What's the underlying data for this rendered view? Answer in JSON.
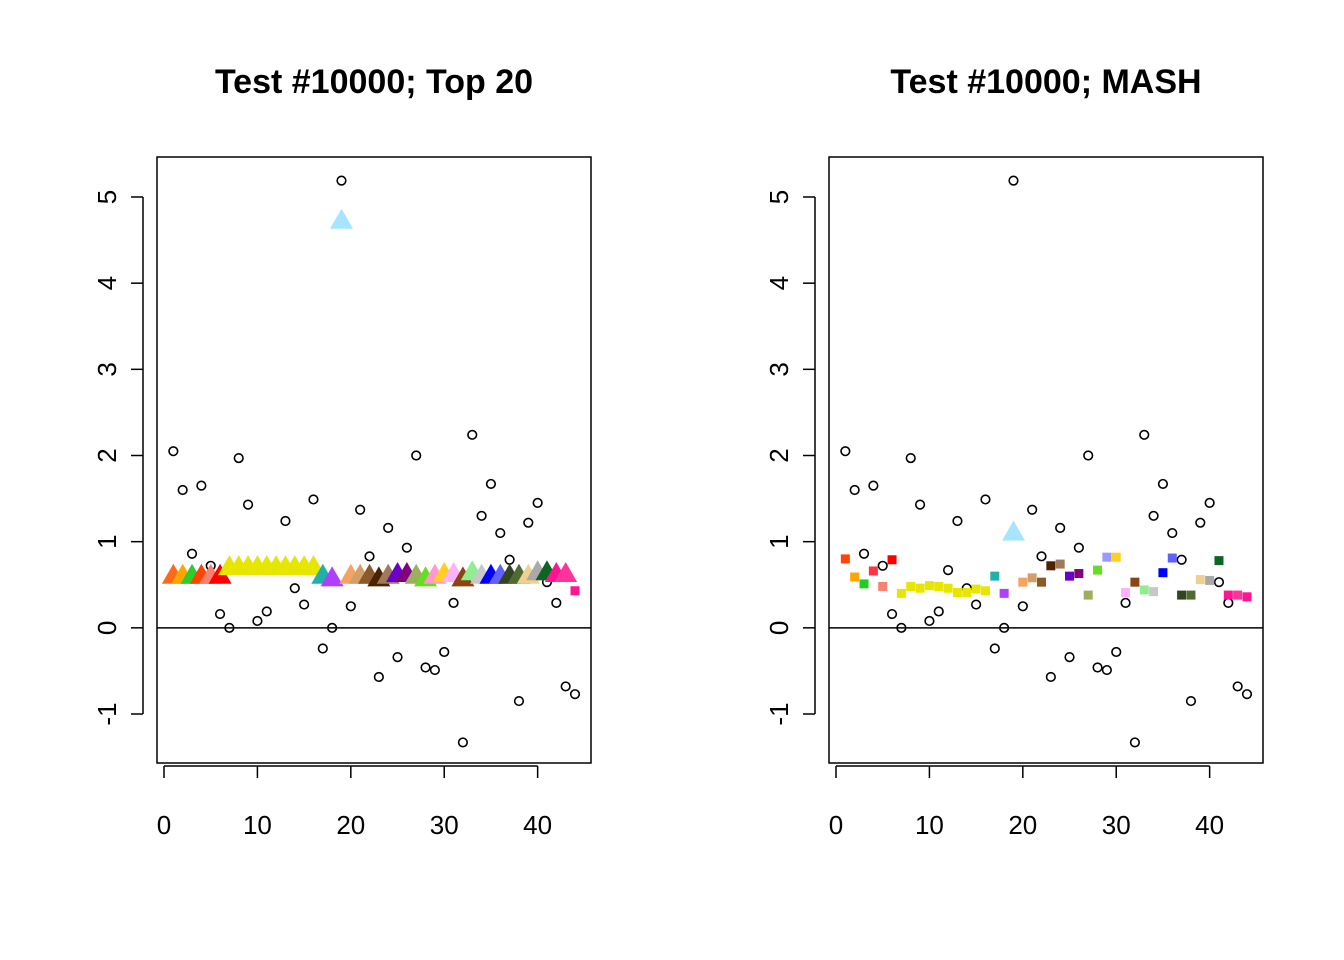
{
  "chart_data": [
    {
      "type": "scatter",
      "title": "Test #10000; Top 20",
      "xlim": [
        0,
        44
      ],
      "ylim": [
        -1.5,
        5.5
      ],
      "x_ticks": [
        "0",
        "10",
        "20",
        "30",
        "40"
      ],
      "y_ticks": [
        "-1",
        "0",
        "1",
        "2",
        "3",
        "4",
        "5"
      ],
      "hline": 0,
      "series": [
        {
          "marker": "circle",
          "color": "#000000",
          "points": [
            [
              1,
              2.05
            ],
            [
              2,
              1.6
            ],
            [
              3,
              0.86
            ],
            [
              4,
              1.65
            ],
            [
              5,
              0.72
            ],
            [
              6,
              0.16
            ],
            [
              7,
              0.0
            ],
            [
              8,
              1.97
            ],
            [
              9,
              1.43
            ],
            [
              10,
              0.08
            ],
            [
              11,
              0.19
            ],
            [
              13,
              1.24
            ],
            [
              14,
              0.46
            ],
            [
              15,
              0.27
            ],
            [
              16,
              1.49
            ],
            [
              17,
              -0.24
            ],
            [
              18,
              0.0
            ],
            [
              19,
              5.19
            ],
            [
              20,
              0.25
            ],
            [
              21,
              1.37
            ],
            [
              22,
              0.83
            ],
            [
              23,
              -0.57
            ],
            [
              24,
              1.16
            ],
            [
              25,
              -0.34
            ],
            [
              26,
              0.93
            ],
            [
              27,
              2.0
            ],
            [
              28,
              -0.46
            ],
            [
              29,
              -0.49
            ],
            [
              30,
              -0.28
            ],
            [
              31,
              0.29
            ],
            [
              32,
              -1.33
            ],
            [
              33,
              2.24
            ],
            [
              34,
              1.3
            ],
            [
              35,
              1.67
            ],
            [
              36,
              1.1
            ],
            [
              37,
              0.79
            ],
            [
              38,
              -0.85
            ],
            [
              39,
              1.22
            ],
            [
              40,
              1.45
            ],
            [
              41,
              0.53
            ],
            [
              42,
              0.29
            ],
            [
              43,
              -0.68
            ],
            [
              44,
              -0.77
            ]
          ]
        },
        {
          "marker": "triangle",
          "points": [
            [
              1,
              0.6,
              "#FF6A1A"
            ],
            [
              2,
              0.6,
              "#FFA500"
            ],
            [
              3,
              0.6,
              "#2ECC2E"
            ],
            [
              4,
              0.6,
              "#FF4500"
            ],
            [
              5,
              0.6,
              "#FA8072"
            ],
            [
              6,
              0.6,
              "#FF0000"
            ],
            [
              7,
              0.7,
              "#E6E600"
            ],
            [
              8,
              0.7,
              "#E6E600"
            ],
            [
              9,
              0.7,
              "#E6E600"
            ],
            [
              10,
              0.7,
              "#E6E600"
            ],
            [
              11,
              0.7,
              "#E6E600"
            ],
            [
              12,
              0.7,
              "#E6E600"
            ],
            [
              13,
              0.7,
              "#E6E600"
            ],
            [
              14,
              0.7,
              "#E6E600"
            ],
            [
              15,
              0.7,
              "#E6E600"
            ],
            [
              16,
              0.7,
              "#E6E600"
            ],
            [
              17,
              0.6,
              "#20B2AA"
            ],
            [
              18,
              0.57,
              "#B040FF"
            ],
            [
              19,
              4.72,
              "#A6E4FF"
            ],
            [
              20,
              0.6,
              "#F4A460"
            ],
            [
              21,
              0.6,
              "#D2A066"
            ],
            [
              22,
              0.6,
              "#8B5A2B"
            ],
            [
              23,
              0.57,
              "#4A2400"
            ],
            [
              24,
              0.6,
              "#A0785A"
            ],
            [
              25,
              0.62,
              "#6A00CC"
            ],
            [
              26,
              0.62,
              "#800080"
            ],
            [
              27,
              0.6,
              "#9CAF5C"
            ],
            [
              28,
              0.57,
              "#66DD22"
            ],
            [
              29,
              0.6,
              "#FF99CC"
            ],
            [
              30,
              0.62,
              "#FFD020"
            ],
            [
              31,
              0.62,
              "#FFB0FF"
            ],
            [
              32,
              0.57,
              "#8B4513"
            ],
            [
              33,
              0.64,
              "#90EE90"
            ],
            [
              34,
              0.6,
              "#C8C8C8"
            ],
            [
              35,
              0.6,
              "#0000FF"
            ],
            [
              36,
              0.6,
              "#6060FF"
            ],
            [
              37,
              0.6,
              "#334422"
            ],
            [
              38,
              0.6,
              "#4F6B2F"
            ],
            [
              39,
              0.6,
              "#F0D090"
            ],
            [
              40,
              0.64,
              "#A9A9A9"
            ],
            [
              41,
              0.64,
              "#0B6623"
            ],
            [
              42,
              0.62,
              "#FF1493"
            ],
            [
              43,
              0.62,
              "#FF3399"
            ]
          ]
        },
        {
          "marker": "square",
          "points": [
            [
              44,
              0.43,
              "#FF1493"
            ]
          ]
        }
      ]
    },
    {
      "type": "scatter",
      "title": "Test #10000; MASH",
      "xlim": [
        0,
        44
      ],
      "ylim": [
        -1.5,
        5.5
      ],
      "x_ticks": [
        "0",
        "10",
        "20",
        "30",
        "40"
      ],
      "y_ticks": [
        "-1",
        "0",
        "1",
        "2",
        "3",
        "4",
        "5"
      ],
      "hline": 0,
      "series": [
        {
          "marker": "circle",
          "color": "#000000",
          "points": [
            [
              1,
              2.05
            ],
            [
              2,
              1.6
            ],
            [
              3,
              0.86
            ],
            [
              4,
              1.65
            ],
            [
              5,
              0.72
            ],
            [
              6,
              0.16
            ],
            [
              7,
              0.0
            ],
            [
              8,
              1.97
            ],
            [
              9,
              1.43
            ],
            [
              10,
              0.08
            ],
            [
              11,
              0.19
            ],
            [
              12,
              0.67
            ],
            [
              13,
              1.24
            ],
            [
              14,
              0.46
            ],
            [
              15,
              0.27
            ],
            [
              16,
              1.49
            ],
            [
              17,
              -0.24
            ],
            [
              18,
              0.0
            ],
            [
              19,
              5.19
            ],
            [
              20,
              0.25
            ],
            [
              21,
              1.37
            ],
            [
              22,
              0.83
            ],
            [
              23,
              -0.57
            ],
            [
              24,
              1.16
            ],
            [
              25,
              -0.34
            ],
            [
              26,
              0.93
            ],
            [
              27,
              2.0
            ],
            [
              28,
              -0.46
            ],
            [
              29,
              -0.49
            ],
            [
              30,
              -0.28
            ],
            [
              31,
              0.29
            ],
            [
              32,
              -1.33
            ],
            [
              33,
              2.24
            ],
            [
              34,
              1.3
            ],
            [
              35,
              1.67
            ],
            [
              36,
              1.1
            ],
            [
              37,
              0.79
            ],
            [
              38,
              -0.85
            ],
            [
              39,
              1.22
            ],
            [
              40,
              1.45
            ],
            [
              41,
              0.53
            ],
            [
              42,
              0.29
            ],
            [
              43,
              -0.68
            ],
            [
              44,
              -0.77
            ]
          ]
        },
        {
          "marker": "square",
          "points": [
            [
              1,
              0.8,
              "#FF4500"
            ],
            [
              2,
              0.59,
              "#FFA500"
            ],
            [
              3,
              0.51,
              "#22CC22"
            ],
            [
              4,
              0.66,
              "#FF3344"
            ],
            [
              5,
              0.48,
              "#FA8072"
            ],
            [
              6,
              0.79,
              "#FF0000"
            ],
            [
              7,
              0.4,
              "#E6E600"
            ],
            [
              8,
              0.48,
              "#E6E600"
            ],
            [
              9,
              0.46,
              "#E6E600"
            ],
            [
              10,
              0.49,
              "#E6E600"
            ],
            [
              11,
              0.48,
              "#E6E600"
            ],
            [
              12,
              0.46,
              "#E6E600"
            ],
            [
              13,
              0.41,
              "#E6E600"
            ],
            [
              14,
              0.41,
              "#E6E600"
            ],
            [
              15,
              0.45,
              "#E6E600"
            ],
            [
              16,
              0.43,
              "#E6E600"
            ],
            [
              17,
              0.6,
              "#20B2AA"
            ],
            [
              18,
              0.4,
              "#B040FF"
            ],
            [
              20,
              0.53,
              "#F4A460"
            ],
            [
              21,
              0.58,
              "#D2A066"
            ],
            [
              22,
              0.53,
              "#8B5A2B"
            ],
            [
              23,
              0.72,
              "#4A2400"
            ],
            [
              24,
              0.74,
              "#A0785A"
            ],
            [
              25,
              0.6,
              "#6A00CC"
            ],
            [
              26,
              0.63,
              "#800080"
            ],
            [
              27,
              0.38,
              "#9CAF5C"
            ],
            [
              28,
              0.67,
              "#66DD22"
            ],
            [
              29,
              0.82,
              "#9999FF"
            ],
            [
              30,
              0.82,
              "#FFD020"
            ],
            [
              31,
              0.41,
              "#FFB0FF"
            ],
            [
              32,
              0.53,
              "#8B4513"
            ],
            [
              33,
              0.44,
              "#90EE90"
            ],
            [
              34,
              0.42,
              "#C8C8C8"
            ],
            [
              35,
              0.64,
              "#0000FF"
            ],
            [
              36,
              0.81,
              "#6060FF"
            ],
            [
              37,
              0.38,
              "#334422"
            ],
            [
              38,
              0.38,
              "#4F6B2F"
            ],
            [
              39,
              0.56,
              "#F0D090"
            ],
            [
              40,
              0.55,
              "#A9A9A9"
            ],
            [
              41,
              0.78,
              "#0B6623"
            ],
            [
              42,
              0.38,
              "#FF1493"
            ],
            [
              43,
              0.38,
              "#FF3399"
            ],
            [
              44,
              0.36,
              "#FF1493"
            ]
          ]
        },
        {
          "marker": "triangle",
          "points": [
            [
              19,
              1.1,
              "#A6E4FF"
            ]
          ]
        }
      ]
    }
  ]
}
